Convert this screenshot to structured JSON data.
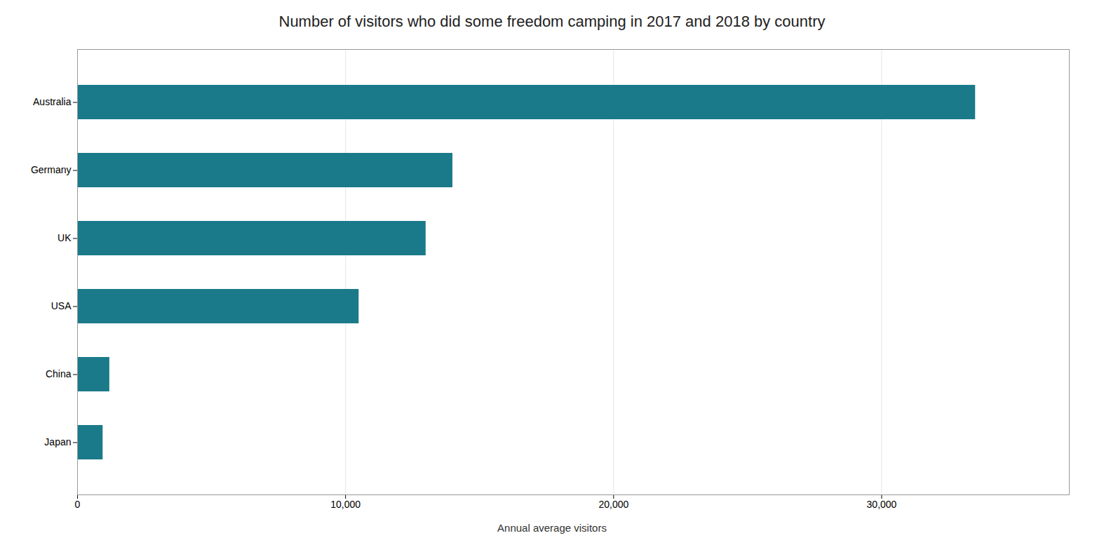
{
  "chart_data": {
    "type": "bar",
    "orientation": "horizontal",
    "title": "Number of visitors who did some freedom camping in 2017 and 2018 by country",
    "xlabel": "Annual average visitors",
    "categories": [
      "Japan",
      "China",
      "USA",
      "UK",
      "Germany",
      "Australia"
    ],
    "values": [
      950,
      1200,
      10500,
      13000,
      14000,
      33500
    ],
    "color": "#1a7a8a",
    "xlim": [
      0,
      37000
    ],
    "xticks": [
      0,
      {
        "value": 10000,
        "label": "10,000"
      },
      {
        "value": 20000,
        "label": "20,000"
      },
      {
        "value": 30000,
        "label": "30,000"
      }
    ],
    "grid": true
  }
}
